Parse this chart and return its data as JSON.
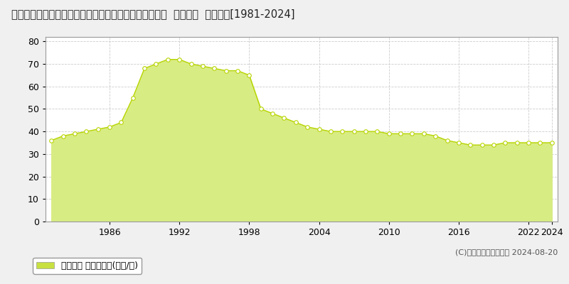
{
  "title": "東京都西多摩郡瑞穂町大字箱根ケ崎字宿東２３６５番４  地価公示  地価推移[1981-2024]",
  "years": [
    1981,
    1982,
    1983,
    1984,
    1985,
    1986,
    1987,
    1988,
    1989,
    1990,
    1991,
    1992,
    1993,
    1994,
    1995,
    1996,
    1997,
    1998,
    1999,
    2000,
    2001,
    2002,
    2003,
    2004,
    2005,
    2006,
    2007,
    2008,
    2009,
    2010,
    2011,
    2012,
    2013,
    2014,
    2015,
    2016,
    2017,
    2018,
    2019,
    2020,
    2021,
    2022,
    2023,
    2024
  ],
  "values": [
    36,
    38,
    39,
    40,
    41,
    42,
    44,
    55,
    68,
    70,
    72,
    72,
    70,
    69,
    68,
    67,
    67,
    65,
    50,
    48,
    46,
    44,
    42,
    41,
    40,
    40,
    40,
    40,
    40,
    39,
    39,
    39,
    39,
    38,
    36,
    35,
    34,
    34,
    34,
    35,
    35,
    35,
    35,
    35
  ],
  "line_color": "#b8d400",
  "fill_color": "#d8ec84",
  "fill_alpha": 1.0,
  "marker_color": "#ffffff",
  "marker_edge_color": "#b8d400",
  "ylim": [
    0,
    82
  ],
  "yticks": [
    0,
    10,
    20,
    30,
    40,
    50,
    60,
    70,
    80
  ],
  "xtick_years": [
    1986,
    1992,
    1998,
    2004,
    2010,
    2016,
    2022,
    2024
  ],
  "legend_label": "地価公示 平均坪単価(万円/坪)",
  "legend_marker_color": "#c8e040",
  "copyright_text": "(C)土地価格ドットコム 2024-08-20",
  "background_color": "#f0f0f0",
  "plot_bg_color": "#ffffff",
  "title_fontsize": 10.5,
  "axis_fontsize": 9,
  "legend_fontsize": 9,
  "grid_color": "#cccccc",
  "border_color": "#999999"
}
